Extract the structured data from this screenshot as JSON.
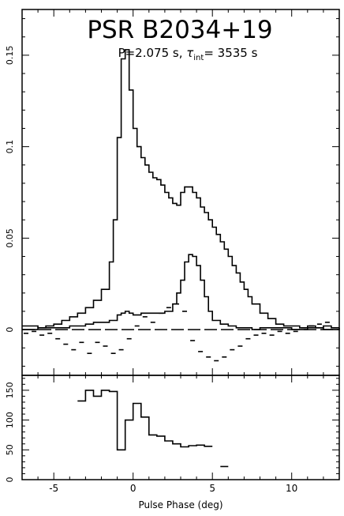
{
  "chart_data": [
    {
      "type": "line",
      "title": "PSR B2034+19",
      "subtitle_prefix": "P=2.075 s, ",
      "subtitle_tau": "τ",
      "subtitle_sub": "int",
      "subtitle_suffix": "= 3535 s",
      "xlabel": "Pulse Phase (deg)",
      "ylabel": "",
      "xlim": [
        -7,
        13
      ],
      "ylim": [
        -0.025,
        0.175
      ],
      "x_ticks": [
        -5,
        0,
        5,
        10
      ],
      "y_ticks": [
        0,
        0.05,
        0.1,
        0.15
      ],
      "y_tick_labels": [
        "0",
        "0.05",
        "0.1",
        "0.15"
      ],
      "series": [
        {
          "style": "solid",
          "x": [
            -7,
            -6,
            -5.5,
            -5,
            -4.5,
            -4,
            -3.5,
            -3,
            -2.5,
            -2,
            -1.5,
            -1.25,
            -1,
            -0.75,
            -0.5,
            -0.25,
            0,
            0.25,
            0.5,
            0.75,
            1,
            1.25,
            1.5,
            1.75,
            2,
            2.25,
            2.5,
            2.75,
            3,
            3.25,
            3.5,
            3.75,
            4,
            4.25,
            4.5,
            4.75,
            5,
            5.25,
            5.5,
            5.75,
            6,
            6.25,
            6.5,
            6.75,
            7,
            7.25,
            7.5,
            8,
            8.5,
            9,
            9.5,
            10,
            10.5,
            11,
            11.5,
            12,
            12.5,
            13
          ],
          "y": [
            0.002,
            0.001,
            0.002,
            0.003,
            0.005,
            0.007,
            0.009,
            0.012,
            0.016,
            0.022,
            0.037,
            0.06,
            0.105,
            0.148,
            0.153,
            0.131,
            0.11,
            0.1,
            0.094,
            0.09,
            0.086,
            0.083,
            0.082,
            0.079,
            0.075,
            0.072,
            0.069,
            0.068,
            0.075,
            0.078,
            0.078,
            0.075,
            0.072,
            0.067,
            0.064,
            0.06,
            0.056,
            0.052,
            0.048,
            0.044,
            0.04,
            0.035,
            0.031,
            0.026,
            0.022,
            0.018,
            0.014,
            0.009,
            0.006,
            0.003,
            0.002,
            0.002,
            0.001,
            0.002,
            0.001,
            0.002,
            0.001,
            0.001
          ]
        },
        {
          "style": "solid",
          "x": [
            -7,
            -6,
            -5,
            -4,
            -3,
            -2.5,
            -2,
            -1.5,
            -1,
            -0.75,
            -0.5,
            -0.25,
            0,
            0.5,
            1,
            1.5,
            2,
            2.5,
            2.75,
            3,
            3.25,
            3.5,
            3.75,
            4,
            4.25,
            4.5,
            4.75,
            5,
            5.5,
            6,
            6.5,
            7,
            7.5,
            8,
            9,
            10,
            11,
            12,
            13
          ],
          "y": [
            0,
            0.001,
            0.001,
            0.002,
            0.003,
            0.004,
            0.004,
            0.005,
            0.008,
            0.009,
            0.01,
            0.009,
            0.008,
            0.009,
            0.009,
            0.009,
            0.01,
            0.014,
            0.02,
            0.027,
            0.037,
            0.041,
            0.04,
            0.035,
            0.027,
            0.018,
            0.01,
            0.005,
            0.003,
            0.002,
            0.001,
            0.001,
            0,
            0.001,
            0.001,
            0,
            0.001,
            0,
            0.001
          ]
        },
        {
          "style": "dash",
          "x": [
            -6.75,
            -6.25,
            -5.75,
            -5.25,
            -4.75,
            -4.25,
            -3.75,
            -3.25,
            -2.75,
            -2.25,
            -1.75,
            -1.25,
            -0.75,
            -0.25,
            0.25,
            0.75,
            1.25,
            1.75,
            2.25,
            2.75,
            3.25,
            3.75,
            4.25,
            4.75,
            5.25,
            5.75,
            6.25,
            6.75,
            7.25,
            7.75,
            8.25,
            8.75,
            9.25,
            9.75,
            10.25,
            10.75,
            11.25,
            11.75,
            12.25,
            12.75
          ],
          "y": [
            -0.002,
            -0.001,
            -0.003,
            -0.002,
            -0.005,
            -0.008,
            -0.011,
            -0.007,
            -0.013,
            -0.007,
            -0.009,
            -0.013,
            -0.011,
            -0.005,
            0.002,
            0.007,
            0.004,
            0.009,
            0.012,
            0.014,
            0.01,
            -0.006,
            -0.012,
            -0.015,
            -0.017,
            -0.015,
            -0.011,
            -0.009,
            -0.005,
            -0.003,
            -0.002,
            -0.003,
            -0.001,
            -0.002,
            -0.001,
            0.001,
            0.002,
            0.003,
            0.004,
            0.001
          ]
        }
      ]
    },
    {
      "type": "line",
      "xlabel": "Pulse Phase (deg)",
      "ylabel": "",
      "xlim": [
        -7,
        13
      ],
      "ylim": [
        0,
        175
      ],
      "x_ticks": [
        -5,
        0,
        5,
        10
      ],
      "x_tick_labels": [
        "-5",
        "0",
        "5",
        "10"
      ],
      "y_ticks": [
        0,
        50,
        100,
        150
      ],
      "y_tick_labels": [
        "0",
        "50",
        "100",
        "150"
      ],
      "series": [
        {
          "style": "step",
          "x": [
            -3.25,
            -2.75,
            -2.25,
            -1.75,
            -1.25,
            -0.75,
            -0.25,
            0.25,
            0.75,
            1.25,
            1.75,
            2.25,
            2.75,
            3.25,
            3.75,
            4.25,
            4.75
          ],
          "y": [
            132,
            150,
            140,
            150,
            148,
            50,
            100,
            128,
            105,
            75,
            73,
            65,
            60,
            55,
            57,
            58,
            56
          ]
        },
        {
          "style": "step",
          "x": [
            5.75
          ],
          "y": [
            22
          ]
        }
      ]
    }
  ]
}
